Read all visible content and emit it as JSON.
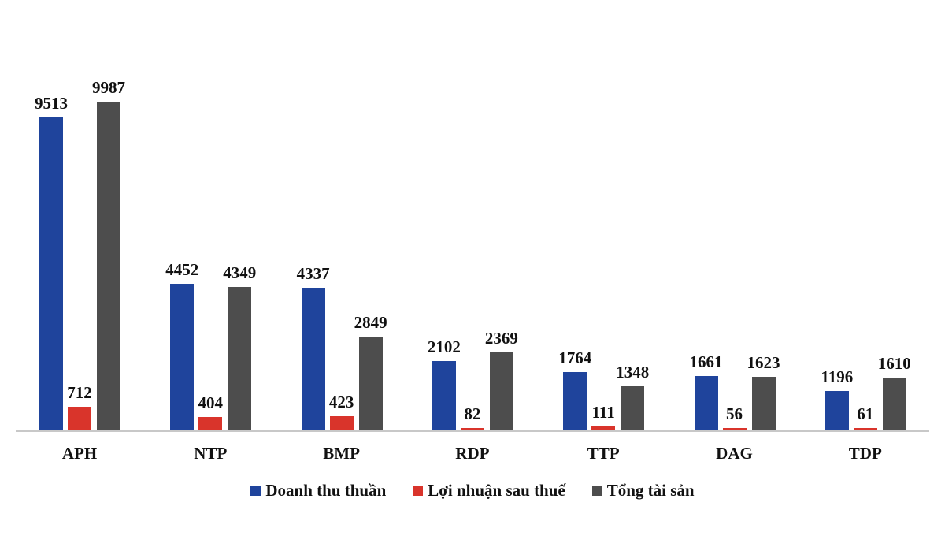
{
  "chart_data": {
    "type": "bar",
    "title": "",
    "xlabel": "",
    "ylabel": "",
    "categories": [
      "APH",
      "NTP",
      "BMP",
      "RDP",
      "TTP",
      "DAG",
      "TDP"
    ],
    "series": [
      {
        "name": "Doanh thu thuần",
        "color": "#1f449c",
        "values": [
          9513,
          4452,
          4337,
          2102,
          1764,
          1661,
          1196
        ]
      },
      {
        "name": "Lợi nhuận sau thuế",
        "color": "#d9342b",
        "values": [
          712,
          404,
          423,
          82,
          111,
          56,
          61
        ]
      },
      {
        "name": "Tổng tài sản",
        "color": "#4d4d4d",
        "values": [
          9987,
          4349,
          2849,
          2369,
          1348,
          1623,
          1610
        ]
      }
    ],
    "ylim": [
      0,
      10000
    ],
    "grid": false,
    "legend_position": "bottom",
    "data_labels": true
  },
  "legend": {
    "items": [
      {
        "label": "Doanh thu thuần",
        "color": "#1f449c"
      },
      {
        "label": "Lợi nhuận sau thuế",
        "color": "#d9342b"
      },
      {
        "label": "Tổng tài sản",
        "color": "#4d4d4d"
      }
    ]
  }
}
